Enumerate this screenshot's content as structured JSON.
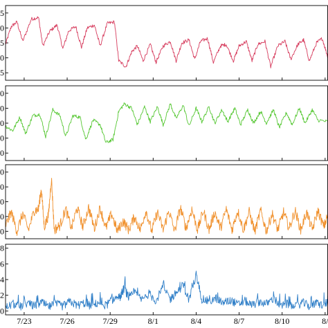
{
  "chart_data": {
    "type": "line",
    "x_tick_labels": [
      "7/23",
      "7/26",
      "7/29",
      "8/1",
      "8/4",
      "8/7",
      "8/10",
      "8/"
    ],
    "x_range": [
      0,
      22.5
    ],
    "x_ticks": [
      1.3,
      4.3,
      7.3,
      10.3,
      13.3,
      16.3,
      19.3,
      22.3
    ],
    "panels": [
      {
        "color": "#d63a5c",
        "ytick_labels": [
          "5",
          "0",
          "5",
          "0",
          "5"
        ],
        "ylim": [
          0,
          5
        ],
        "yticks": [
          0.5,
          1.5,
          2.5,
          3.5,
          4.5
        ],
        "level_shift_x": 7.9,
        "series": [
          {
            "x": 0.0,
            "y": 2.4
          },
          {
            "x": 0.4,
            "y": 3.6
          },
          {
            "x": 0.8,
            "y": 3.9
          },
          {
            "x": 1.2,
            "y": 2.6
          },
          {
            "x": 1.8,
            "y": 4.1
          },
          {
            "x": 2.3,
            "y": 4.2
          },
          {
            "x": 2.6,
            "y": 2.3
          },
          {
            "x": 3.1,
            "y": 3.3
          },
          {
            "x": 3.6,
            "y": 3.7
          },
          {
            "x": 4.0,
            "y": 2.1
          },
          {
            "x": 4.4,
            "y": 3.3
          },
          {
            "x": 4.9,
            "y": 3.6
          },
          {
            "x": 5.3,
            "y": 2.2
          },
          {
            "x": 5.7,
            "y": 3.5
          },
          {
            "x": 6.2,
            "y": 3.7
          },
          {
            "x": 6.6,
            "y": 2.3
          },
          {
            "x": 7.1,
            "y": 3.8
          },
          {
            "x": 7.6,
            "y": 3.9
          },
          {
            "x": 7.9,
            "y": 1.3
          },
          {
            "x": 8.4,
            "y": 0.9
          },
          {
            "x": 8.8,
            "y": 1.9
          },
          {
            "x": 9.2,
            "y": 2.3
          },
          {
            "x": 9.6,
            "y": 1.3
          },
          {
            "x": 10.1,
            "y": 2.4
          },
          {
            "x": 10.5,
            "y": 1.2
          },
          {
            "x": 11.0,
            "y": 2.3
          },
          {
            "x": 11.5,
            "y": 2.6
          },
          {
            "x": 11.9,
            "y": 1.3
          },
          {
            "x": 12.3,
            "y": 2.5
          },
          {
            "x": 12.8,
            "y": 2.7
          },
          {
            "x": 13.2,
            "y": 1.4
          },
          {
            "x": 13.6,
            "y": 2.6
          },
          {
            "x": 14.1,
            "y": 2.8
          },
          {
            "x": 14.5,
            "y": 1.2
          },
          {
            "x": 15.0,
            "y": 2.3
          },
          {
            "x": 15.4,
            "y": 2.4
          },
          {
            "x": 15.9,
            "y": 1.3
          },
          {
            "x": 16.3,
            "y": 2.3
          },
          {
            "x": 16.8,
            "y": 2.6
          },
          {
            "x": 17.2,
            "y": 1.3
          },
          {
            "x": 17.6,
            "y": 2.4
          },
          {
            "x": 18.1,
            "y": 2.6
          },
          {
            "x": 18.5,
            "y": 0.9
          },
          {
            "x": 19.0,
            "y": 2.3
          },
          {
            "x": 19.5,
            "y": 2.6
          },
          {
            "x": 19.9,
            "y": 1.4
          },
          {
            "x": 20.4,
            "y": 2.4
          },
          {
            "x": 20.8,
            "y": 2.7
          },
          {
            "x": 21.2,
            "y": 1.3
          },
          {
            "x": 21.7,
            "y": 2.5
          },
          {
            "x": 22.1,
            "y": 2.8
          },
          {
            "x": 22.5,
            "y": 1.5
          }
        ]
      },
      {
        "color": "#55c732",
        "ytick_labels": [
          "0",
          "0",
          "0",
          "0",
          "0"
        ],
        "ylim": [
          0,
          5
        ],
        "yticks": [
          0.5,
          1.5,
          2.5,
          3.5,
          4.5
        ],
        "level_shift_x": 7.9,
        "series": [
          {
            "x": 0.0,
            "y": 2.3
          },
          {
            "x": 0.5,
            "y": 2.0
          },
          {
            "x": 1.0,
            "y": 2.9
          },
          {
            "x": 1.4,
            "y": 1.8
          },
          {
            "x": 1.9,
            "y": 3.0
          },
          {
            "x": 2.4,
            "y": 3.1
          },
          {
            "x": 2.8,
            "y": 1.6
          },
          {
            "x": 3.3,
            "y": 3.4
          },
          {
            "x": 3.8,
            "y": 3.0
          },
          {
            "x": 4.2,
            "y": 1.6
          },
          {
            "x": 4.7,
            "y": 3.0
          },
          {
            "x": 5.2,
            "y": 2.9
          },
          {
            "x": 5.6,
            "y": 1.4
          },
          {
            "x": 6.1,
            "y": 2.7
          },
          {
            "x": 6.6,
            "y": 2.4
          },
          {
            "x": 7.0,
            "y": 1.2
          },
          {
            "x": 7.5,
            "y": 1.4
          },
          {
            "x": 7.9,
            "y": 3.3
          },
          {
            "x": 8.3,
            "y": 3.8
          },
          {
            "x": 8.8,
            "y": 3.5
          },
          {
            "x": 9.2,
            "y": 2.4
          },
          {
            "x": 9.7,
            "y": 3.6
          },
          {
            "x": 10.1,
            "y": 2.6
          },
          {
            "x": 10.6,
            "y": 3.6
          },
          {
            "x": 11.0,
            "y": 2.4
          },
          {
            "x": 11.5,
            "y": 3.8
          },
          {
            "x": 11.9,
            "y": 2.8
          },
          {
            "x": 12.4,
            "y": 3.7
          },
          {
            "x": 12.8,
            "y": 2.3
          },
          {
            "x": 13.3,
            "y": 3.5
          },
          {
            "x": 13.7,
            "y": 2.6
          },
          {
            "x": 14.2,
            "y": 3.6
          },
          {
            "x": 14.6,
            "y": 2.5
          },
          {
            "x": 15.1,
            "y": 3.4
          },
          {
            "x": 15.5,
            "y": 2.6
          },
          {
            "x": 16.0,
            "y": 3.5
          },
          {
            "x": 16.4,
            "y": 2.4
          },
          {
            "x": 16.9,
            "y": 3.4
          },
          {
            "x": 17.3,
            "y": 2.5
          },
          {
            "x": 17.8,
            "y": 3.3
          },
          {
            "x": 18.2,
            "y": 2.5
          },
          {
            "x": 18.7,
            "y": 3.4
          },
          {
            "x": 19.1,
            "y": 2.2
          },
          {
            "x": 19.6,
            "y": 3.2
          },
          {
            "x": 20.0,
            "y": 2.4
          },
          {
            "x": 20.5,
            "y": 3.5
          },
          {
            "x": 20.9,
            "y": 2.5
          },
          {
            "x": 21.4,
            "y": 3.4
          },
          {
            "x": 21.8,
            "y": 2.7
          },
          {
            "x": 22.5,
            "y": 2.6
          }
        ]
      },
      {
        "color": "#f0912e",
        "ytick_labels": [
          "0",
          "0",
          "0",
          "0",
          "0"
        ],
        "ylim": [
          0,
          5
        ],
        "yticks": [
          0.5,
          1.5,
          2.5,
          3.5,
          4.5
        ],
        "series": [
          {
            "x": 0.0,
            "y": 0.9
          },
          {
            "x": 0.4,
            "y": 1.8
          },
          {
            "x": 0.8,
            "y": 0.5
          },
          {
            "x": 1.2,
            "y": 1.7
          },
          {
            "x": 1.6,
            "y": 0.6
          },
          {
            "x": 2.0,
            "y": 1.9
          },
          {
            "x": 2.3,
            "y": 2.0
          },
          {
            "x": 2.5,
            "y": 3.4
          },
          {
            "x": 2.7,
            "y": 0.8
          },
          {
            "x": 3.0,
            "y": 1.6
          },
          {
            "x": 3.2,
            "y": 4.1
          },
          {
            "x": 3.4,
            "y": 0.6
          },
          {
            "x": 3.8,
            "y": 0.9
          },
          {
            "x": 4.2,
            "y": 2.0
          },
          {
            "x": 4.6,
            "y": 0.7
          },
          {
            "x": 5.0,
            "y": 2.1
          },
          {
            "x": 5.4,
            "y": 0.8
          },
          {
            "x": 5.8,
            "y": 2.1
          },
          {
            "x": 6.2,
            "y": 0.7
          },
          {
            "x": 6.6,
            "y": 2.1
          },
          {
            "x": 7.0,
            "y": 0.7
          },
          {
            "x": 7.4,
            "y": 1.7
          },
          {
            "x": 7.8,
            "y": 0.5
          },
          {
            "x": 8.2,
            "y": 1.2
          },
          {
            "x": 8.6,
            "y": 0.6
          },
          {
            "x": 9.0,
            "y": 1.5
          },
          {
            "x": 9.4,
            "y": 0.6
          },
          {
            "x": 9.8,
            "y": 1.9
          },
          {
            "x": 10.2,
            "y": 0.5
          },
          {
            "x": 10.6,
            "y": 1.8
          },
          {
            "x": 11.0,
            "y": 0.6
          },
          {
            "x": 11.4,
            "y": 1.9
          },
          {
            "x": 11.8,
            "y": 0.5
          },
          {
            "x": 12.2,
            "y": 2.1
          },
          {
            "x": 12.6,
            "y": 0.7
          },
          {
            "x": 13.0,
            "y": 2.0
          },
          {
            "x": 13.4,
            "y": 0.6
          },
          {
            "x": 13.8,
            "y": 1.9
          },
          {
            "x": 14.2,
            "y": 0.6
          },
          {
            "x": 14.6,
            "y": 1.8
          },
          {
            "x": 15.0,
            "y": 0.7
          },
          {
            "x": 15.4,
            "y": 2.0
          },
          {
            "x": 15.8,
            "y": 0.6
          },
          {
            "x": 16.2,
            "y": 1.9
          },
          {
            "x": 16.6,
            "y": 0.6
          },
          {
            "x": 17.0,
            "y": 1.8
          },
          {
            "x": 17.4,
            "y": 0.5
          },
          {
            "x": 17.8,
            "y": 1.9
          },
          {
            "x": 18.2,
            "y": 0.5
          },
          {
            "x": 18.6,
            "y": 1.7
          },
          {
            "x": 19.0,
            "y": 0.6
          },
          {
            "x": 19.4,
            "y": 1.8
          },
          {
            "x": 19.8,
            "y": 0.7
          },
          {
            "x": 20.2,
            "y": 1.9
          },
          {
            "x": 20.6,
            "y": 0.6
          },
          {
            "x": 21.0,
            "y": 1.8
          },
          {
            "x": 21.4,
            "y": 0.6
          },
          {
            "x": 21.8,
            "y": 1.9
          },
          {
            "x": 22.2,
            "y": 0.8
          },
          {
            "x": 22.5,
            "y": 1.6
          }
        ]
      },
      {
        "color": "#2e7ec7",
        "ytick_labels": [
          "8",
          "6",
          "4",
          "2",
          "0"
        ],
        "ylim": [
          -0.5,
          8.5
        ],
        "yticks": [
          8,
          6,
          4,
          2,
          0
        ],
        "series": [
          {
            "x": 0.0,
            "y": 0.4
          },
          {
            "x": 0.5,
            "y": 0.9
          },
          {
            "x": 1.0,
            "y": 0.5
          },
          {
            "x": 1.5,
            "y": 1.0
          },
          {
            "x": 2.0,
            "y": 0.6
          },
          {
            "x": 2.5,
            "y": 1.1
          },
          {
            "x": 3.0,
            "y": 0.5
          },
          {
            "x": 3.5,
            "y": 0.9
          },
          {
            "x": 4.0,
            "y": 0.6
          },
          {
            "x": 4.5,
            "y": 1.2
          },
          {
            "x": 5.0,
            "y": 0.7
          },
          {
            "x": 5.5,
            "y": 1.0
          },
          {
            "x": 6.0,
            "y": 0.6
          },
          {
            "x": 6.5,
            "y": 1.1
          },
          {
            "x": 7.0,
            "y": 0.7
          },
          {
            "x": 7.5,
            "y": 1.5
          },
          {
            "x": 8.0,
            "y": 1.8
          },
          {
            "x": 8.3,
            "y": 3.0
          },
          {
            "x": 8.6,
            "y": 1.5
          },
          {
            "x": 9.0,
            "y": 2.4
          },
          {
            "x": 9.5,
            "y": 1.4
          },
          {
            "x": 10.0,
            "y": 2.2
          },
          {
            "x": 10.5,
            "y": 1.3
          },
          {
            "x": 11.0,
            "y": 3.1
          },
          {
            "x": 11.5,
            "y": 1.5
          },
          {
            "x": 12.0,
            "y": 2.5
          },
          {
            "x": 12.4,
            "y": 3.3
          },
          {
            "x": 12.8,
            "y": 1.4
          },
          {
            "x": 13.3,
            "y": 4.6
          },
          {
            "x": 13.7,
            "y": 1.5
          },
          {
            "x": 14.2,
            "y": 1.2
          },
          {
            "x": 14.7,
            "y": 1.6
          },
          {
            "x": 15.2,
            "y": 1.0
          },
          {
            "x": 15.7,
            "y": 1.4
          },
          {
            "x": 16.2,
            "y": 0.8
          },
          {
            "x": 16.7,
            "y": 1.3
          },
          {
            "x": 17.2,
            "y": 0.7
          },
          {
            "x": 17.7,
            "y": 1.2
          },
          {
            "x": 18.2,
            "y": 0.9
          },
          {
            "x": 18.7,
            "y": 1.6
          },
          {
            "x": 19.2,
            "y": 0.6
          },
          {
            "x": 19.7,
            "y": 0.9
          },
          {
            "x": 20.2,
            "y": 0.5
          },
          {
            "x": 20.7,
            "y": 1.1
          },
          {
            "x": 21.2,
            "y": 0.6
          },
          {
            "x": 21.7,
            "y": 1.0
          },
          {
            "x": 22.2,
            "y": 0.7
          },
          {
            "x": 22.5,
            "y": 1.3
          }
        ]
      }
    ]
  }
}
